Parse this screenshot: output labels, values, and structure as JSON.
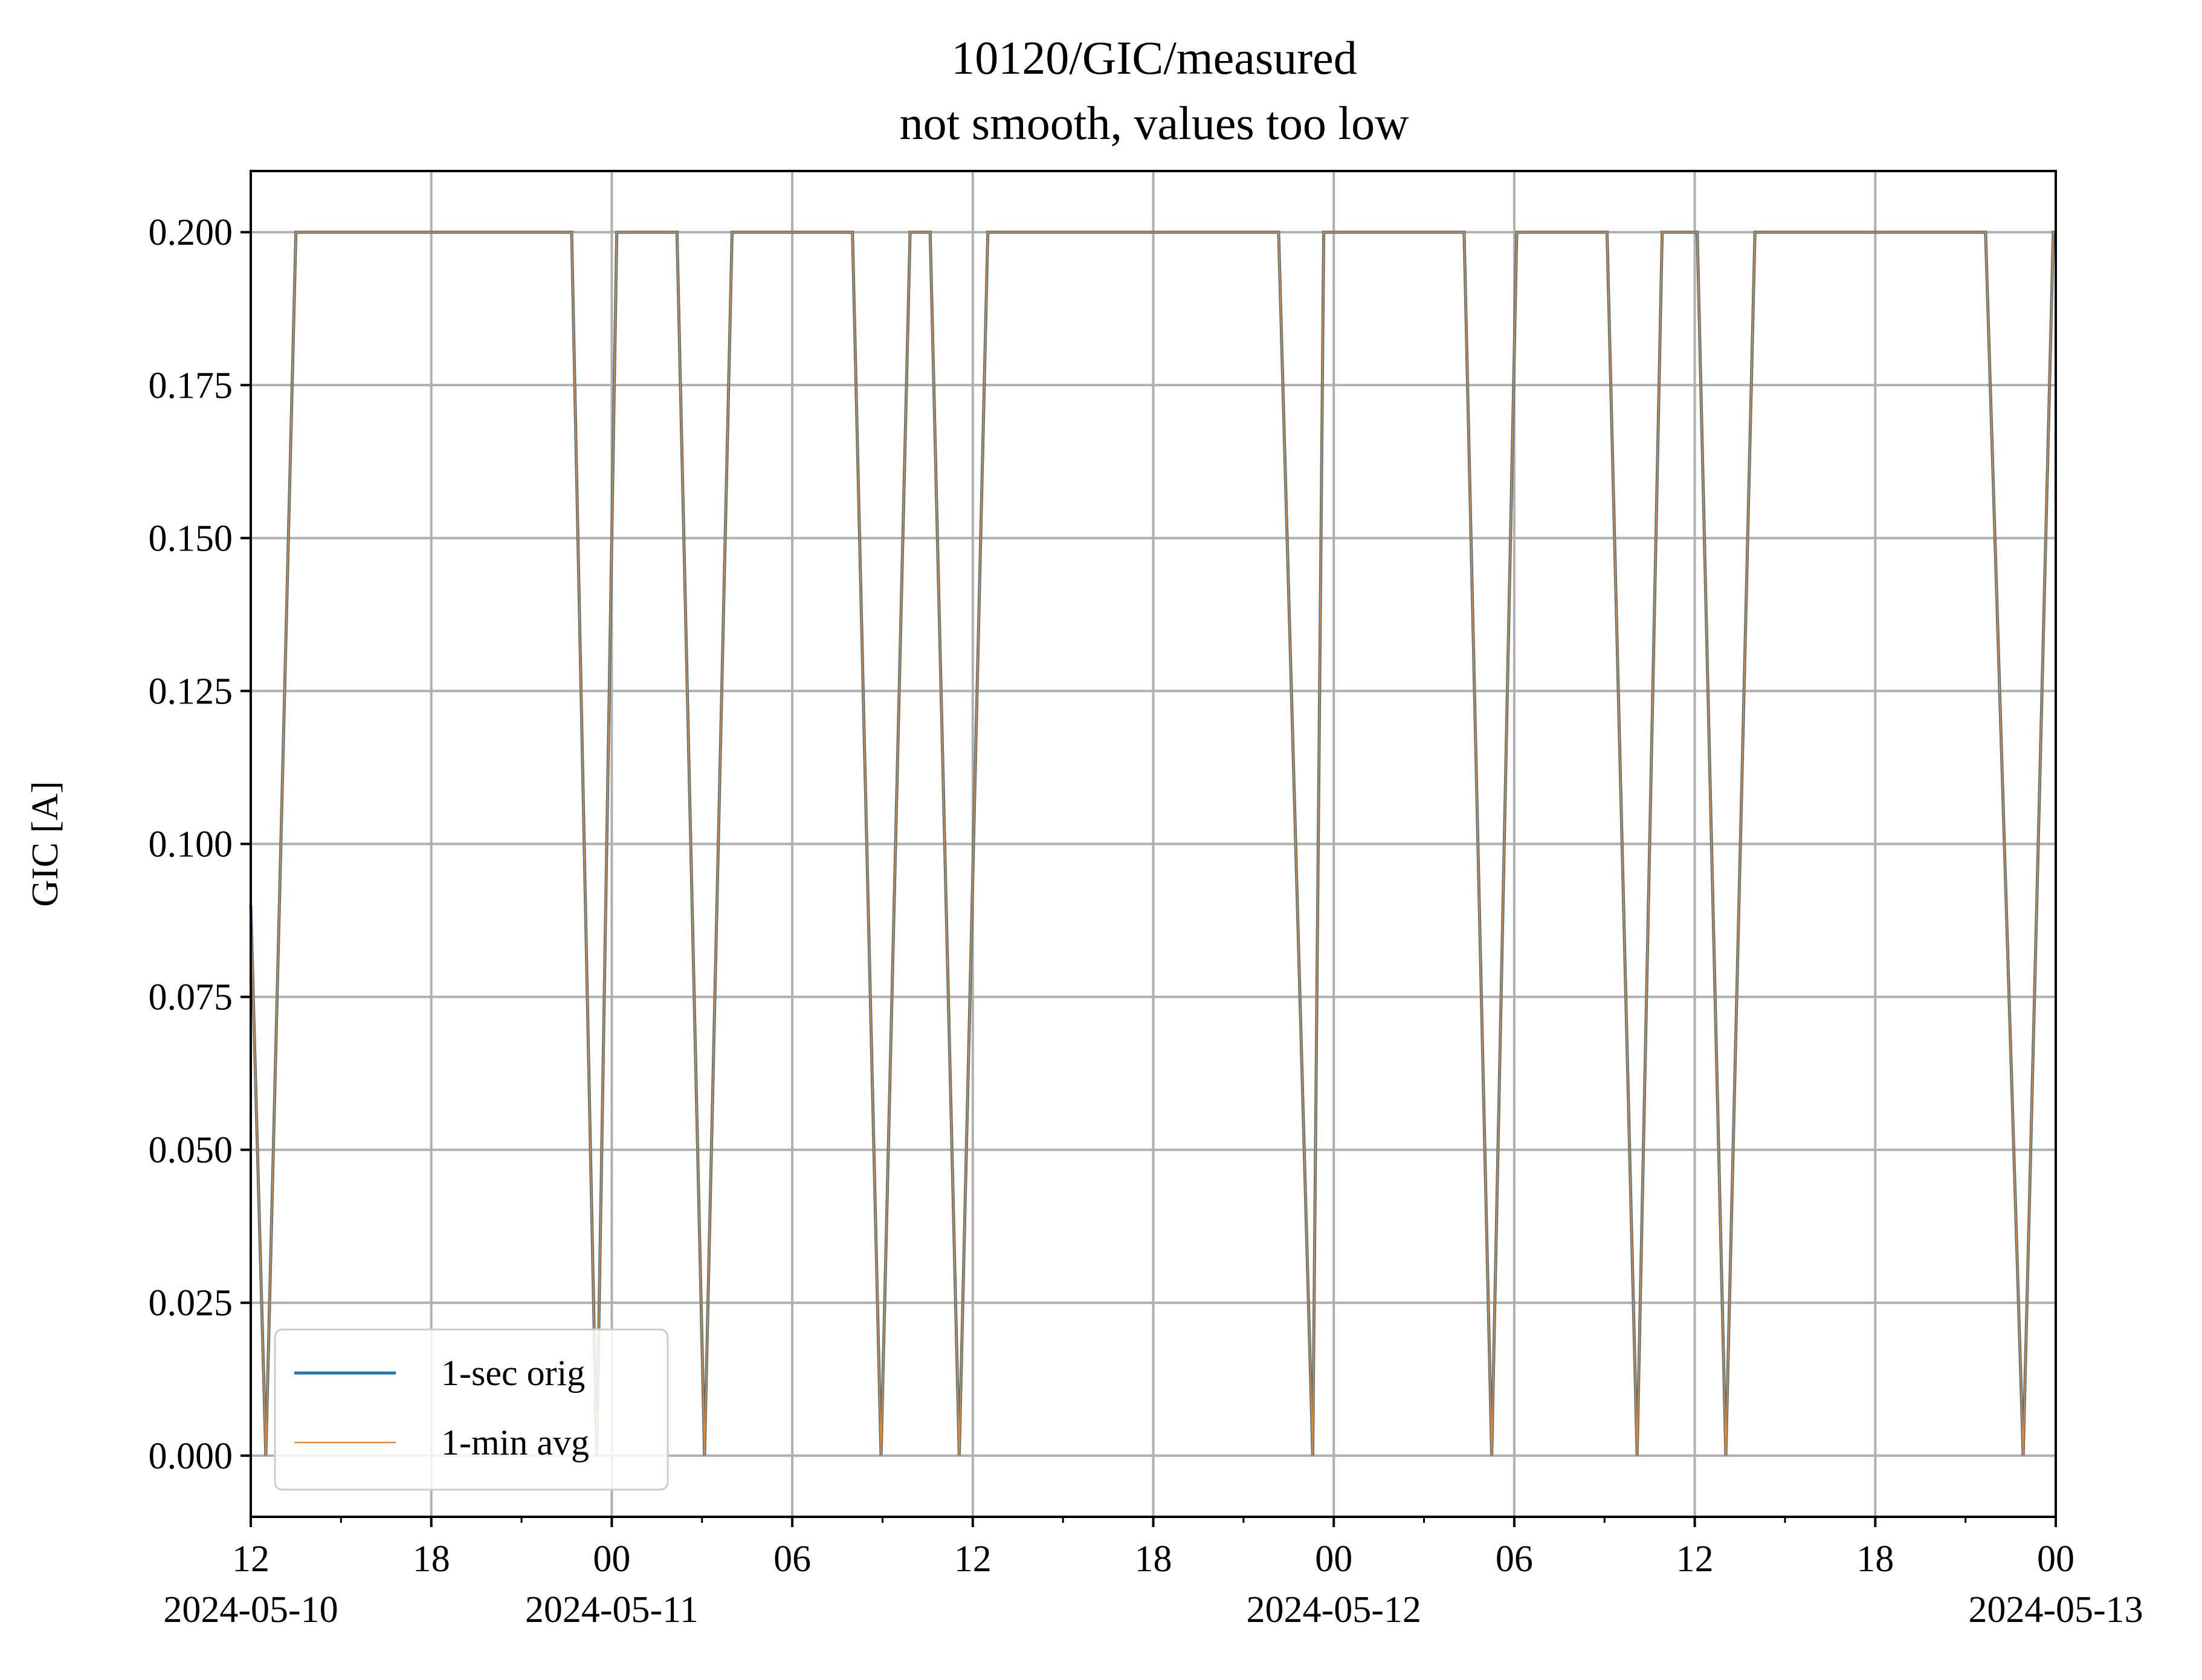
{
  "chart_data": {
    "type": "line",
    "title": "10120/GIC/measured",
    "subtitle": "not smooth, values too low",
    "xlabel": "",
    "ylabel": "GIC [A]",
    "xlim": [
      "2024-05-10 12:00",
      "2024-05-13 00:00"
    ],
    "ylim": [
      -0.01,
      0.21
    ],
    "grid": true,
    "legend_position": "lower-left",
    "y_ticks": [
      {
        "value": 0.0,
        "label": "0.000"
      },
      {
        "value": 0.025,
        "label": "0.025"
      },
      {
        "value": 0.05,
        "label": "0.050"
      },
      {
        "value": 0.075,
        "label": "0.075"
      },
      {
        "value": 0.1,
        "label": "0.100"
      },
      {
        "value": 0.125,
        "label": "0.125"
      },
      {
        "value": 0.15,
        "label": "0.150"
      },
      {
        "value": 0.175,
        "label": "0.175"
      },
      {
        "value": 0.2,
        "label": "0.200"
      }
    ],
    "x_major_ticks": [
      {
        "value": "2024-05-10 12:00",
        "label": "12",
        "date": "2024-05-10"
      },
      {
        "value": "2024-05-10 18:00",
        "label": "18",
        "date": ""
      },
      {
        "value": "2024-05-11 00:00",
        "label": "00",
        "date": "2024-05-11"
      },
      {
        "value": "2024-05-11 06:00",
        "label": "06",
        "date": ""
      },
      {
        "value": "2024-05-11 12:00",
        "label": "12",
        "date": ""
      },
      {
        "value": "2024-05-11 18:00",
        "label": "18",
        "date": ""
      },
      {
        "value": "2024-05-12 00:00",
        "label": "00",
        "date": "2024-05-12"
      },
      {
        "value": "2024-05-12 06:00",
        "label": "06",
        "date": ""
      },
      {
        "value": "2024-05-12 12:00",
        "label": "12",
        "date": ""
      },
      {
        "value": "2024-05-12 18:00",
        "label": "18",
        "date": ""
      },
      {
        "value": "2024-05-13 00:00",
        "label": "00",
        "date": "2024-05-13"
      }
    ],
    "x_minor_ticks": [
      "2024-05-10 15:00",
      "2024-05-10 21:00",
      "2024-05-11 03:00",
      "2024-05-11 09:00",
      "2024-05-11 15:00",
      "2024-05-11 21:00",
      "2024-05-12 03:00",
      "2024-05-12 09:00",
      "2024-05-12 15:00",
      "2024-05-12 21:00"
    ],
    "series": [
      {
        "name": "1-sec orig",
        "color": "#1f77b4",
        "line_width": "thick",
        "x": [
          "2024-05-10 12:00",
          "2024-05-10 12:30",
          "2024-05-10 13:30",
          "2024-05-10 22:40",
          "2024-05-10 23:30",
          "2024-05-11 00:10",
          "2024-05-11 02:10",
          "2024-05-11 03:05",
          "2024-05-11 04:00",
          "2024-05-11 08:00",
          "2024-05-11 08:57",
          "2024-05-11 09:55",
          "2024-05-11 10:35",
          "2024-05-11 11:33",
          "2024-05-11 12:30",
          "2024-05-11 22:10",
          "2024-05-11 23:18",
          "2024-05-11 23:40",
          "2024-05-12 04:20",
          "2024-05-12 05:15",
          "2024-05-12 06:05",
          "2024-05-12 09:05",
          "2024-05-12 10:05",
          "2024-05-12 10:55",
          "2024-05-12 12:05",
          "2024-05-12 13:02",
          "2024-05-12 14:00",
          "2024-05-12 21:40",
          "2024-05-12 22:55",
          "2024-05-12 23:55",
          "2024-05-13 00:00"
        ],
        "values": [
          0.09,
          0.0,
          0.2,
          0.2,
          0.0,
          0.2,
          0.2,
          0.0,
          0.2,
          0.2,
          0.0,
          0.2,
          0.2,
          0.0,
          0.2,
          0.2,
          0.0,
          0.2,
          0.2,
          0.0,
          0.2,
          0.2,
          0.0,
          0.2,
          0.2,
          0.0,
          0.2,
          0.2,
          0.0,
          0.2,
          0.2
        ]
      },
      {
        "name": "1-min avg",
        "color": "#ff7f0e",
        "line_width": "thin",
        "x": [
          "2024-05-10 12:00",
          "2024-05-10 12:30",
          "2024-05-10 13:30",
          "2024-05-10 22:40",
          "2024-05-10 23:30",
          "2024-05-11 00:10",
          "2024-05-11 02:10",
          "2024-05-11 03:05",
          "2024-05-11 04:00",
          "2024-05-11 08:00",
          "2024-05-11 08:57",
          "2024-05-11 09:55",
          "2024-05-11 10:35",
          "2024-05-11 11:33",
          "2024-05-11 12:30",
          "2024-05-11 22:10",
          "2024-05-11 23:18",
          "2024-05-11 23:40",
          "2024-05-12 04:20",
          "2024-05-12 05:15",
          "2024-05-12 06:05",
          "2024-05-12 09:05",
          "2024-05-12 10:05",
          "2024-05-12 10:55",
          "2024-05-12 12:05",
          "2024-05-12 13:02",
          "2024-05-12 14:00",
          "2024-05-12 21:40",
          "2024-05-12 22:55",
          "2024-05-12 23:55",
          "2024-05-13 00:00"
        ],
        "values": [
          0.09,
          0.0,
          0.2,
          0.2,
          0.0,
          0.2,
          0.2,
          0.0,
          0.2,
          0.2,
          0.0,
          0.2,
          0.2,
          0.0,
          0.2,
          0.2,
          0.0,
          0.2,
          0.2,
          0.0,
          0.2,
          0.2,
          0.0,
          0.2,
          0.2,
          0.0,
          0.2,
          0.2,
          0.0,
          0.2,
          0.2
        ]
      }
    ]
  }
}
